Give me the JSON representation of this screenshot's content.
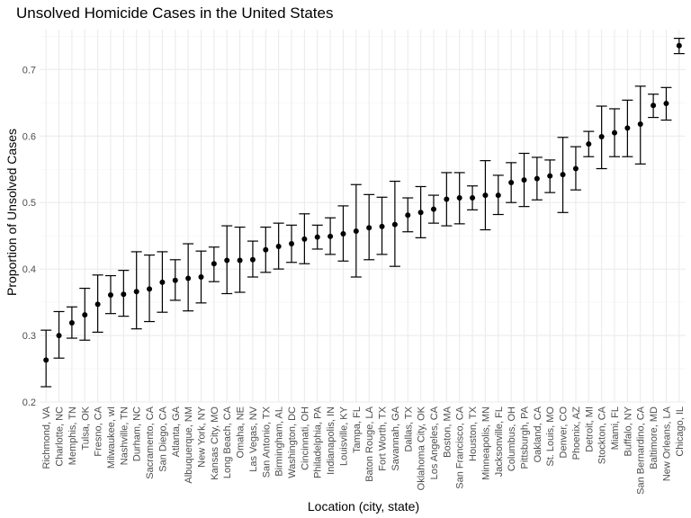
{
  "chart_data": {
    "type": "scatter",
    "title": "Unsolved Homicide Cases in the United States",
    "xlabel": "Location (city, state)",
    "ylabel": "Proportion of Unsolved Cases",
    "ylim": [
      0.2,
      0.76
    ],
    "yticks": [
      "0.2",
      "0.3",
      "0.4",
      "0.5",
      "0.6",
      "0.7"
    ],
    "grid": true,
    "legend": "none",
    "point_color": "#000000",
    "series": [
      {
        "categories": [
          "Richmond, VA",
          "Charlotte, NC",
          "Memphis, TN",
          "Tulsa, OK",
          "Fresno, CA",
          "Milwaukee, wI",
          "Nashville, TN",
          "Durham, NC",
          "Sacramento, CA",
          "San Diego, CA",
          "Atlanta, GA",
          "Albuquerque, NM",
          "New York, NY",
          "Kansas City, MO",
          "Long Beach, CA",
          "Omaha, NE",
          "Las Vegas, NV",
          "San Antonio, TX",
          "Birmingham, AL",
          "Washington, DC",
          "Cincinnati, OH",
          "Philadelphia, PA",
          "Indianapolis, IN",
          "Louisville, KY",
          "Tampa, FL",
          "Baton Rouge, LA",
          "Fort Worth, TX",
          "Savannah, GA",
          "Dallas, TX",
          "Oklahoma City, OK",
          "Los Angeles, CA",
          "Boston, MA",
          "San Francisco, CA",
          "Houston, TX",
          "Minneapolis, MN",
          "Jacksonville, FL",
          "Columbus, OH",
          "Pittsburgh, PA",
          "Oakland, CA",
          "St. Louis, MO",
          "Denver, CO",
          "Phoenix, AZ",
          "Detroit, MI",
          "Stockton, CA",
          "Miami, FL",
          "Buffalo, NY",
          "San Bernardino, CA",
          "Baltimore, MD",
          "New Orleans, LA",
          "Chicago, IL"
        ],
        "estimate": [
          0.263,
          0.3,
          0.319,
          0.331,
          0.347,
          0.361,
          0.362,
          0.366,
          0.37,
          0.38,
          0.383,
          0.386,
          0.388,
          0.408,
          0.413,
          0.413,
          0.414,
          0.429,
          0.434,
          0.438,
          0.445,
          0.448,
          0.449,
          0.453,
          0.457,
          0.462,
          0.464,
          0.467,
          0.481,
          0.485,
          0.49,
          0.505,
          0.507,
          0.507,
          0.511,
          0.511,
          0.53,
          0.534,
          0.536,
          0.54,
          0.542,
          0.551,
          0.588,
          0.599,
          0.605,
          0.612,
          0.618,
          0.646,
          0.649,
          0.736
        ],
        "lower": [
          0.223,
          0.266,
          0.296,
          0.293,
          0.305,
          0.333,
          0.329,
          0.31,
          0.321,
          0.335,
          0.353,
          0.337,
          0.349,
          0.381,
          0.363,
          0.365,
          0.388,
          0.395,
          0.4,
          0.41,
          0.408,
          0.43,
          0.422,
          0.412,
          0.388,
          0.414,
          0.422,
          0.404,
          0.456,
          0.447,
          0.469,
          0.465,
          0.468,
          0.489,
          0.459,
          0.482,
          0.5,
          0.494,
          0.504,
          0.515,
          0.485,
          0.519,
          0.569,
          0.551,
          0.569,
          0.569,
          0.558,
          0.628,
          0.624,
          0.724
        ],
        "upper": [
          0.308,
          0.336,
          0.343,
          0.371,
          0.391,
          0.39,
          0.398,
          0.426,
          0.421,
          0.426,
          0.414,
          0.438,
          0.427,
          0.433,
          0.465,
          0.463,
          0.442,
          0.463,
          0.469,
          0.466,
          0.483,
          0.466,
          0.477,
          0.495,
          0.527,
          0.512,
          0.508,
          0.532,
          0.507,
          0.524,
          0.511,
          0.545,
          0.545,
          0.525,
          0.563,
          0.541,
          0.56,
          0.574,
          0.568,
          0.564,
          0.598,
          0.584,
          0.607,
          0.645,
          0.641,
          0.654,
          0.675,
          0.663,
          0.673,
          0.747
        ]
      }
    ]
  }
}
